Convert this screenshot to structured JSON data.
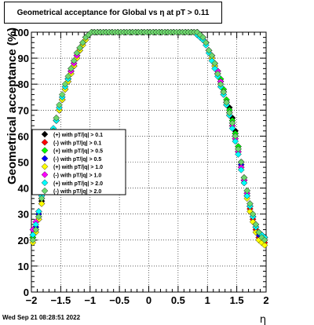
{
  "chart_data": {
    "type": "scatter",
    "title": "Geometrical acceptance for Global vs   η at pT > 0.11",
    "xlabel": "η",
    "ylabel": "Geometrical acceptance (%)",
    "xlim": [
      -2,
      2
    ],
    "ylim": [
      0,
      100
    ],
    "x_ticks": [
      -2,
      -1.5,
      -1,
      -0.5,
      0,
      0.5,
      1,
      1.5,
      2
    ],
    "x_tick_labels": [
      "−2",
      "−1.5",
      "−1",
      "−0.5",
      "0",
      "0.5",
      "1",
      "1.5",
      "2"
    ],
    "y_ticks": [
      0,
      10,
      20,
      30,
      40,
      50,
      60,
      70,
      80,
      90,
      100
    ],
    "y_tick_labels": [
      "0",
      "10",
      "20",
      "30",
      "40",
      "50",
      "60",
      "70",
      "80",
      "90",
      "100"
    ],
    "grid": true,
    "legend_position": "left",
    "x": [
      -1.975,
      -1.925,
      -1.875,
      -1.825,
      -1.775,
      -1.725,
      -1.675,
      -1.625,
      -1.575,
      -1.525,
      -1.475,
      -1.425,
      -1.375,
      -1.325,
      -1.275,
      -1.225,
      -1.175,
      -1.125,
      -1.075,
      -1.025,
      -0.975,
      -0.925,
      -0.875,
      -0.825,
      -0.775,
      -0.725,
      -0.675,
      -0.625,
      -0.575,
      -0.525,
      -0.475,
      -0.425,
      -0.375,
      -0.325,
      -0.275,
      -0.225,
      -0.175,
      -0.125,
      -0.075,
      -0.025,
      0.025,
      0.075,
      0.125,
      0.175,
      0.225,
      0.275,
      0.325,
      0.375,
      0.425,
      0.475,
      0.525,
      0.575,
      0.625,
      0.675,
      0.725,
      0.775,
      0.825,
      0.875,
      0.925,
      0.975,
      1.025,
      1.075,
      1.125,
      1.175,
      1.225,
      1.275,
      1.325,
      1.375,
      1.425,
      1.475,
      1.525,
      1.575,
      1.625,
      1.675,
      1.725,
      1.775,
      1.825,
      1.875,
      1.925,
      1.975
    ],
    "series": [
      {
        "name": "(+) with pT/|q| > 0.1",
        "color": "#000000",
        "values": [
          21,
          24,
          29,
          35,
          42,
          50,
          56,
          62,
          67,
          71,
          75,
          79,
          82,
          85,
          88,
          91,
          93,
          96,
          98,
          99,
          100,
          100,
          100,
          100,
          100,
          100,
          100,
          100,
          100,
          100,
          100,
          100,
          100,
          100,
          100,
          100,
          100,
          100,
          100,
          100,
          100,
          100,
          100,
          100,
          100,
          100,
          100,
          100,
          100,
          100,
          100,
          100,
          100,
          100,
          100,
          100,
          100,
          99,
          98,
          96,
          93,
          91,
          88,
          85,
          82,
          78,
          74,
          71,
          67,
          62,
          56,
          50,
          44,
          38,
          33,
          29,
          25,
          22,
          21,
          20
        ]
      },
      {
        "name": "(-) with pT/|q| > 0.1",
        "color": "#ff0000",
        "values": [
          20,
          23,
          28,
          34,
          41,
          49,
          55,
          61,
          66,
          70,
          74,
          78,
          81,
          84,
          87,
          90,
          93,
          95,
          97,
          99,
          100,
          100,
          100,
          100,
          100,
          100,
          100,
          100,
          100,
          100,
          100,
          100,
          100,
          100,
          100,
          100,
          100,
          100,
          100,
          100,
          100,
          100,
          100,
          100,
          100,
          100,
          100,
          100,
          100,
          100,
          100,
          100,
          100,
          100,
          100,
          100,
          100,
          99,
          98,
          96,
          93,
          90,
          87,
          84,
          81,
          77,
          73,
          70,
          66,
          61,
          55,
          49,
          43,
          37,
          32,
          28,
          24,
          21,
          20,
          19
        ]
      },
      {
        "name": "(+) with pT/|q| > 0.5",
        "color": "#00ff00",
        "values": [
          21,
          25,
          30,
          36,
          43,
          51,
          57,
          62,
          67,
          71,
          75,
          79,
          82,
          85,
          88,
          91,
          94,
          96,
          98,
          99,
          100,
          100,
          100,
          100,
          100,
          100,
          100,
          100,
          100,
          100,
          100,
          100,
          100,
          100,
          100,
          100,
          100,
          100,
          100,
          100,
          100,
          100,
          100,
          100,
          100,
          100,
          100,
          100,
          100,
          100,
          100,
          100,
          100,
          100,
          100,
          100,
          99,
          99,
          97,
          96,
          93,
          91,
          88,
          85,
          82,
          78,
          74,
          70,
          66,
          61,
          56,
          50,
          44,
          39,
          34,
          30,
          26,
          23,
          22,
          21
        ]
      },
      {
        "name": "(-) with pT/|q| > 0.5",
        "color": "#0000ff",
        "values": [
          22,
          25,
          30,
          36,
          43,
          50,
          56,
          61,
          66,
          70,
          74,
          78,
          81,
          84,
          87,
          90,
          93,
          96,
          98,
          99,
          100,
          100,
          100,
          100,
          100,
          100,
          100,
          100,
          100,
          100,
          100,
          100,
          100,
          100,
          100,
          100,
          100,
          100,
          100,
          100,
          100,
          100,
          100,
          100,
          100,
          100,
          100,
          100,
          100,
          100,
          100,
          100,
          100,
          100,
          100,
          100,
          100,
          99,
          98,
          96,
          93,
          90,
          87,
          84,
          81,
          77,
          73,
          69,
          65,
          60,
          55,
          49,
          43,
          38,
          33,
          29,
          25,
          22,
          21,
          20
        ]
      },
      {
        "name": "(+) with pT/|q| > 1.0",
        "color": "#ffff00",
        "values": [
          19,
          23,
          28,
          34,
          41,
          49,
          55,
          61,
          66,
          70,
          74,
          78,
          81,
          84,
          87,
          90,
          93,
          95,
          97,
          99,
          100,
          100,
          100,
          100,
          100,
          100,
          100,
          100,
          100,
          100,
          100,
          100,
          100,
          100,
          100,
          100,
          100,
          100,
          100,
          100,
          100,
          100,
          100,
          100,
          100,
          100,
          100,
          100,
          100,
          100,
          100,
          100,
          100,
          100,
          100,
          100,
          100,
          99,
          98,
          96,
          93,
          90,
          87,
          84,
          80,
          76,
          72,
          68,
          64,
          59,
          54,
          48,
          42,
          36,
          31,
          27,
          23,
          20,
          19,
          18
        ]
      },
      {
        "name": "(-) with pT/|q| > 1.0",
        "color": "#ff00ff",
        "values": [
          24,
          27,
          31,
          37,
          44,
          51,
          57,
          62,
          67,
          71,
          75,
          79,
          82,
          85,
          88,
          91,
          94,
          96,
          98,
          99,
          100,
          100,
          100,
          100,
          100,
          100,
          100,
          100,
          100,
          100,
          100,
          100,
          100,
          100,
          100,
          100,
          100,
          100,
          100,
          100,
          100,
          100,
          100,
          100,
          100,
          100,
          100,
          100,
          100,
          100,
          100,
          100,
          100,
          100,
          100,
          100,
          100,
          99,
          98,
          96,
          93,
          91,
          88,
          85,
          81,
          77,
          73,
          69,
          64,
          59,
          54,
          48,
          43,
          38,
          34,
          30,
          26,
          23,
          22,
          21
        ]
      },
      {
        "name": "(+) with pT/|q| > 2.0",
        "color": "#00ffff",
        "values": [
          22,
          26,
          31,
          37,
          44,
          52,
          57,
          63,
          66,
          71,
          75,
          79,
          82,
          86,
          89,
          92,
          94,
          96,
          98,
          99,
          100,
          100,
          100,
          100,
          100,
          100,
          100,
          100,
          100,
          100,
          100,
          100,
          100,
          100,
          100,
          100,
          100,
          100,
          100,
          100,
          100,
          100,
          100,
          100,
          100,
          100,
          100,
          100,
          100,
          100,
          100,
          100,
          100,
          100,
          100,
          100,
          99,
          98,
          97,
          95,
          92,
          89,
          86,
          83,
          79,
          76,
          72,
          68,
          63,
          58,
          53,
          47,
          42,
          37,
          33,
          29,
          25,
          23,
          22,
          21
        ]
      },
      {
        "name": "(-) with pT/|q| > 2.0",
        "color": "#6ed86e",
        "values": [
          20,
          24,
          29,
          36,
          43,
          51,
          57,
          62,
          67,
          72,
          76,
          80,
          83,
          86,
          89,
          92,
          94,
          96,
          98,
          99,
          100,
          100,
          100,
          100,
          100,
          100,
          100,
          100,
          100,
          100,
          100,
          100,
          100,
          100,
          100,
          100,
          100,
          100,
          100,
          100,
          100,
          100,
          100,
          100,
          100,
          100,
          100,
          100,
          100,
          100,
          100,
          100,
          100,
          100,
          100,
          100,
          100,
          99,
          98,
          96,
          93,
          91,
          88,
          84,
          80,
          77,
          73,
          69,
          65,
          60,
          55,
          50,
          44,
          39,
          34,
          30,
          26,
          23,
          21,
          20
        ]
      }
    ]
  },
  "footer": {
    "timestamp": "Wed Sep 21 08:28:51 2022"
  }
}
